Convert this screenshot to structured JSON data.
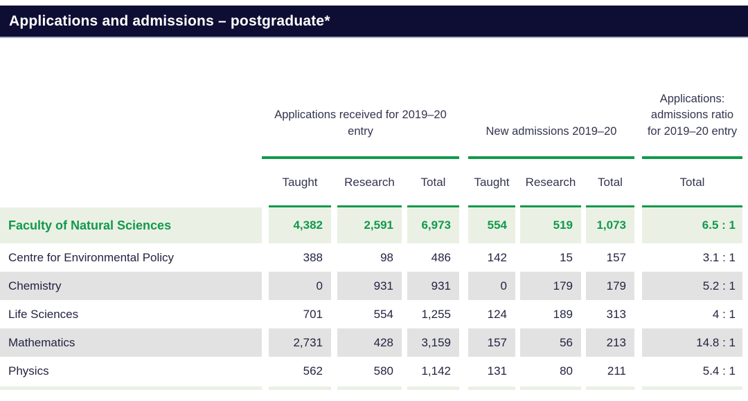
{
  "title_bar": {
    "title": "Applications and admissions – postgraduate*"
  },
  "colors": {
    "header_bar_bg": "#0e0d33",
    "header_bar_underline": "#a9aec2",
    "accent_green": "#12994b",
    "highlight_row_bg": "#eaf1e4",
    "alt_row_bg": "#e2e2e2",
    "body_text": "#232342",
    "header_text": "#33344e"
  },
  "table": {
    "column_groups": [
      {
        "label": "Applications received for  2019–20 entry"
      },
      {
        "label": "New admissions 2019–20"
      },
      {
        "label": "Applications: admissions ratio for 2019–20 entry"
      }
    ],
    "subheaders": [
      "Taught",
      "Research",
      "Total",
      "Taught",
      "Research",
      "Total",
      "Total"
    ],
    "rows": [
      {
        "label": "Faculty of Natural Sciences",
        "highlight": true,
        "values": [
          "4,382",
          "2,591",
          "6,973",
          "554",
          "519",
          "1,073",
          "6.5 : 1"
        ]
      },
      {
        "label": "Centre for Environmental Policy",
        "highlight": false,
        "values": [
          "388",
          "98",
          "486",
          "142",
          "15",
          "157",
          "3.1 : 1"
        ]
      },
      {
        "label": "Chemistry",
        "highlight": false,
        "values": [
          "0",
          "931",
          "931",
          "0",
          "179",
          "179",
          "5.2 : 1"
        ]
      },
      {
        "label": "Life Sciences",
        "highlight": false,
        "values": [
          "701",
          "554",
          "1,255",
          "124",
          "189",
          "313",
          "4 : 1"
        ]
      },
      {
        "label": "Mathematics",
        "highlight": false,
        "values": [
          "2,731",
          "428",
          "3,159",
          "157",
          "56",
          "213",
          "14.8 : 1"
        ]
      },
      {
        "label": "Physics",
        "highlight": false,
        "values": [
          "562",
          "580",
          "1,142",
          "131",
          "80",
          "211",
          "5.4 : 1"
        ]
      }
    ]
  }
}
